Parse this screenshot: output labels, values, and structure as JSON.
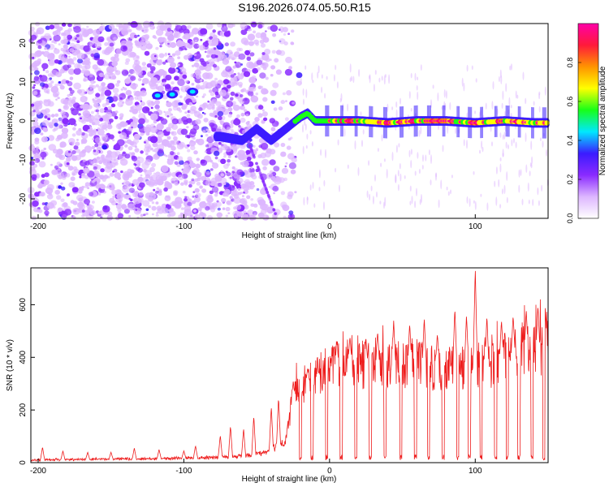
{
  "title": "S196.2026.074.05.50.R15",
  "colors": {
    "snr_line": "#ee1c1c",
    "colormap": [
      "#ffffff",
      "#ddb6ff",
      "#8a2bff",
      "#3b1bff",
      "#00e8ff",
      "#18ff18",
      "#ffff00",
      "#ff9400",
      "#ff1a3a",
      "#ff00a8"
    ]
  },
  "chart_data": [
    {
      "type": "heatmap",
      "xlabel": "Height of straight line (km)",
      "ylabel": "Frequency (Hz)",
      "xlim": [
        -205,
        150
      ],
      "ylim": [
        -25,
        25
      ],
      "xticks": [
        -200,
        -100,
        0,
        100
      ],
      "yticks": [
        -20,
        -10,
        0,
        10,
        20
      ],
      "xtick_labels": [
        "-200",
        "-100",
        "0",
        "100"
      ],
      "ytick_labels": [
        "-20",
        "-10",
        "0",
        "10",
        "20"
      ],
      "colorbar": {
        "label": "Normalized spectral amplitude",
        "range": [
          0,
          1
        ],
        "ticks": [
          0.0,
          0.2,
          0.4,
          0.6,
          0.8
        ],
        "tick_labels": [
          "0.0",
          "0.2",
          "0.4",
          "0.6",
          "0.8"
        ]
      },
      "ridge": {
        "x": [
          -75,
          -60,
          -50,
          -40,
          -30,
          -20,
          -15,
          -10,
          -5,
          0,
          10,
          20,
          40,
          60,
          80,
          100,
          120,
          140,
          150
        ],
        "y": [
          -4,
          -5,
          -2,
          -5,
          -2,
          1,
          2,
          0,
          0,
          0,
          0,
          0,
          -0.5,
          0,
          0,
          -0.5,
          0,
          -0.5,
          -0.5
        ]
      },
      "hotspots": [
        {
          "x": -118,
          "y": 6.5,
          "amp": 0.45
        },
        {
          "x": -108,
          "y": 6.8,
          "amp": 0.45
        },
        {
          "x": -94,
          "y": 7.5,
          "amp": 0.4
        }
      ]
    },
    {
      "type": "line",
      "xlabel": "Height of straight line (km)",
      "ylabel": "SNR (10 * v/v)",
      "xlim": [
        -205,
        150
      ],
      "ylim": [
        0,
        740
      ],
      "xticks": [
        -200,
        -100,
        0,
        100
      ],
      "yticks": [
        0,
        200,
        400,
        600
      ],
      "xtick_labels": [
        "-200",
        "-100",
        "0",
        "100"
      ],
      "ytick_labels": [
        "0",
        "200",
        "400",
        "600"
      ],
      "series": [
        {
          "envelope_x": [
            -205,
            -120,
            -80,
            -60,
            -45,
            -30,
            -25,
            -15,
            0,
            10,
            20,
            40,
            60,
            80,
            100,
            110,
            120,
            140,
            150
          ],
          "envelope_y": [
            10,
            15,
            20,
            25,
            35,
            80,
            250,
            300,
            360,
            380,
            370,
            360,
            380,
            350,
            380,
            360,
            410,
            420,
            440
          ],
          "spikes": [
            {
              "x": -197,
              "y": 60
            },
            {
              "x": -183,
              "y": 45
            },
            {
              "x": -166,
              "y": 40
            },
            {
              "x": -150,
              "y": 40
            },
            {
              "x": -134,
              "y": 55
            },
            {
              "x": -117,
              "y": 50
            },
            {
              "x": -100,
              "y": 45
            },
            {
              "x": -92,
              "y": 65
            },
            {
              "x": -75,
              "y": 105
            },
            {
              "x": -68,
              "y": 140
            },
            {
              "x": -59,
              "y": 130
            },
            {
              "x": -52,
              "y": 180
            },
            {
              "x": -40,
              "y": 215
            },
            {
              "x": -35,
              "y": 250
            },
            {
              "x": -25,
              "y": 300
            },
            {
              "x": -15,
              "y": 360
            },
            {
              "x": -8,
              "y": 350
            },
            {
              "x": 5,
              "y": 460
            },
            {
              "x": 14,
              "y": 480
            },
            {
              "x": 25,
              "y": 470
            },
            {
              "x": 33,
              "y": 500
            },
            {
              "x": 44,
              "y": 540
            },
            {
              "x": 55,
              "y": 530
            },
            {
              "x": 65,
              "y": 550
            },
            {
              "x": 74,
              "y": 490
            },
            {
              "x": 86,
              "y": 590
            },
            {
              "x": 94,
              "y": 560
            },
            {
              "x": 100,
              "y": 740
            },
            {
              "x": 108,
              "y": 560
            },
            {
              "x": 118,
              "y": 540
            },
            {
              "x": 126,
              "y": 560
            },
            {
              "x": 135,
              "y": 580
            },
            {
              "x": 143,
              "y": 600
            },
            {
              "x": 148,
              "y": 590
            }
          ],
          "dips": [
            -20,
            -12,
            -2,
            8,
            18,
            28,
            38,
            49,
            59,
            68,
            78,
            88,
            96,
            104,
            114,
            122,
            130,
            139,
            147
          ]
        }
      ]
    }
  ]
}
